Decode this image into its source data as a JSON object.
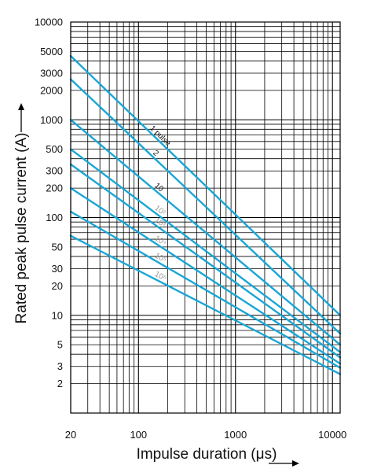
{
  "chart_data": {
    "type": "line",
    "xlabel": "Impulse duration (μs)",
    "ylabel": "Rated peak pulse current (A)",
    "x_scale": "log",
    "y_scale": "log",
    "xlim": [
      20,
      12000
    ],
    "ylim": [
      1,
      10000
    ],
    "grid": true,
    "x_ticks": [
      20,
      100,
      1000,
      10000
    ],
    "x_tick_labels": [
      "20",
      "100",
      "1000",
      "10000"
    ],
    "y_ticks": [
      2,
      3,
      5,
      10,
      20,
      30,
      50,
      100,
      200,
      300,
      500,
      1000,
      2000,
      3000,
      5000,
      10000
    ],
    "y_tick_labels": [
      "2",
      "3",
      "5",
      "10",
      "20",
      "30",
      "50",
      "100",
      "200",
      "300",
      "500",
      "1000",
      "2000",
      "3000",
      "5000",
      "10000"
    ],
    "line_color": "#1aa6d6",
    "series": [
      {
        "name": "1 pulse",
        "x": [
          20,
          12000
        ],
        "y": [
          4500,
          10
        ]
      },
      {
        "name": "2",
        "x": [
          20,
          12000
        ],
        "y": [
          2600,
          6.5
        ]
      },
      {
        "name": "10",
        "x": [
          20,
          12000
        ],
        "y": [
          1000,
          5
        ]
      },
      {
        "name": "10²",
        "x": [
          20,
          12000
        ],
        "y": [
          500,
          4.2
        ]
      },
      {
        "name": "10³",
        "x": [
          20,
          12000
        ],
        "y": [
          350,
          3.7
        ]
      },
      {
        "name": "10⁴",
        "x": [
          20,
          12000
        ],
        "y": [
          200,
          3.2
        ]
      },
      {
        "name": "10⁵",
        "x": [
          20,
          12000
        ],
        "y": [
          115,
          2.9
        ]
      },
      {
        "name": "10⁶",
        "x": [
          20,
          12000
        ],
        "y": [
          65,
          2.5
        ]
      }
    ],
    "curve_labels": [
      "1 pulse",
      "2",
      "10",
      "10²",
      "10³",
      "10⁴",
      "10⁵",
      "10⁶"
    ],
    "curve_label_x": [
      130,
      140,
      145,
      145,
      145,
      145,
      145,
      145
    ]
  }
}
